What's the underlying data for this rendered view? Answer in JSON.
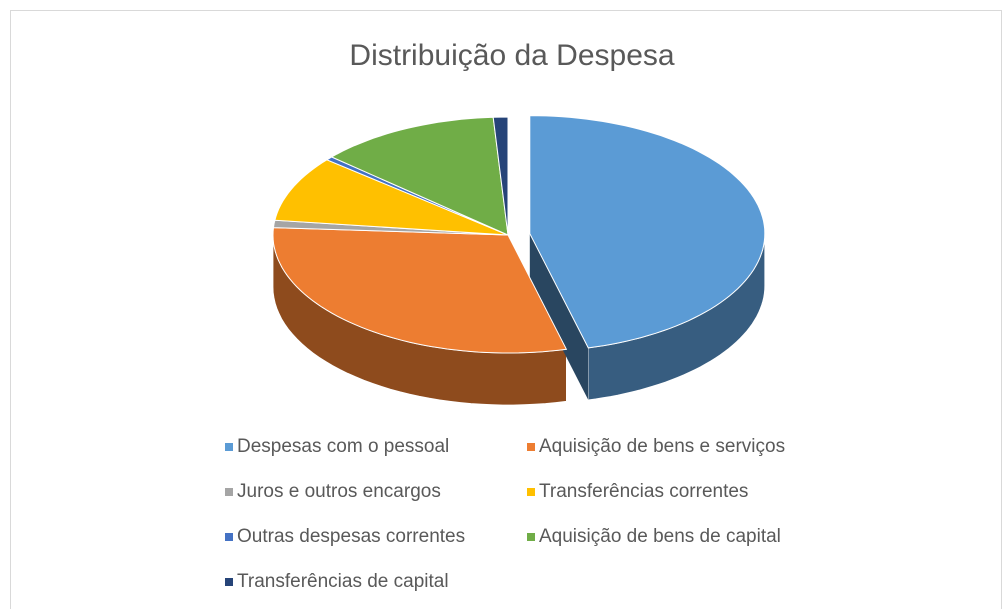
{
  "chart_data": {
    "type": "pie",
    "title": "Distribuição da Despesa",
    "categories": [
      "Despesas com o pessoal",
      "Aquisição de bens e serviços",
      "Juros e outros encargos",
      "Transferências correntes",
      "Outras despesas correntes",
      "Aquisição de bens de capital",
      "Transferências de capital"
    ],
    "values": [
      46,
      30,
      1,
      9,
      0.5,
      12.5,
      1
    ],
    "colors": [
      "#5b9bd5",
      "#ed7d31",
      "#a5a5a5",
      "#ffc000",
      "#4472c4",
      "#70ad47",
      "#264478"
    ],
    "legend": "bottom"
  }
}
